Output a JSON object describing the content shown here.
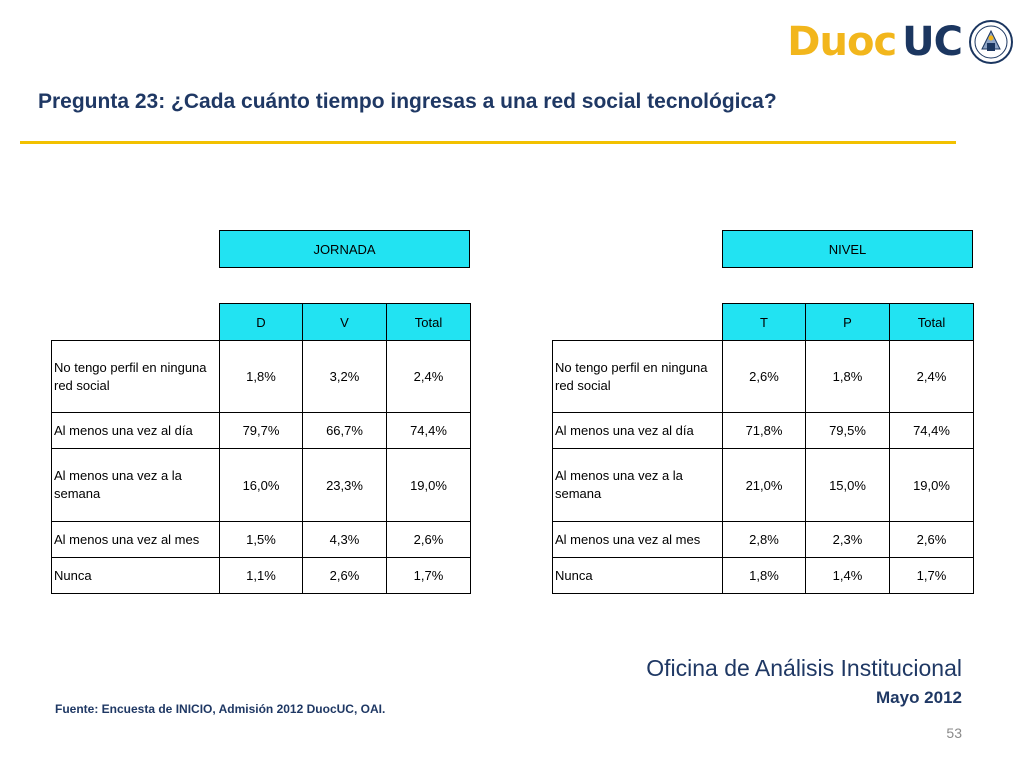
{
  "logo": {
    "part1": "Duoc",
    "part2": "UC"
  },
  "title": "Pregunta 23: ¿Cada cuánto tiempo ingresas a una red social tecnológica?",
  "tables": {
    "jornada": {
      "group_header": "JORNADA",
      "columns": [
        "D",
        "V",
        "Total"
      ],
      "rows": [
        {
          "label": "No tengo perfil en ninguna red social",
          "values": [
            "1,8%",
            "3,2%",
            "2,4%"
          ]
        },
        {
          "label": "Al menos una vez al día",
          "values": [
            "79,7%",
            "66,7%",
            "74,4%"
          ]
        },
        {
          "label": "Al menos una vez a la semana",
          "values": [
            "16,0%",
            "23,3%",
            "19,0%"
          ]
        },
        {
          "label": "Al menos una vez al mes",
          "values": [
            "1,5%",
            "4,3%",
            "2,6%"
          ]
        },
        {
          "label": "Nunca",
          "values": [
            "1,1%",
            "2,6%",
            "1,7%"
          ]
        }
      ]
    },
    "nivel": {
      "group_header": "NIVEL",
      "columns": [
        "T",
        "P",
        "Total"
      ],
      "rows": [
        {
          "label": "No tengo perfil en ninguna red social",
          "values": [
            "2,6%",
            "1,8%",
            "2,4%"
          ]
        },
        {
          "label": "Al menos una vez al día",
          "values": [
            "71,8%",
            "79,5%",
            "74,4%"
          ]
        },
        {
          "label": "Al menos una vez a la semana",
          "values": [
            "21,0%",
            "15,0%",
            "19,0%"
          ]
        },
        {
          "label": "Al menos una vez al mes",
          "values": [
            "2,8%",
            "2,3%",
            "2,6%"
          ]
        },
        {
          "label": "Nunca",
          "values": [
            "1,8%",
            "1,4%",
            "1,7%"
          ]
        }
      ]
    }
  },
  "footer": {
    "office": "Oficina de Análisis Institucional",
    "date": "Mayo 2012",
    "source": "Fuente: Encuesta de INICIO, Admisión 2012 DuocUC, OAI.",
    "page_number": "53"
  },
  "colors": {
    "header_fill": "#22e3f2",
    "title_color": "#1f3864",
    "rule_color": "#f2c100",
    "logo_gold": "#f2b61c",
    "logo_navy": "#1b3660"
  }
}
